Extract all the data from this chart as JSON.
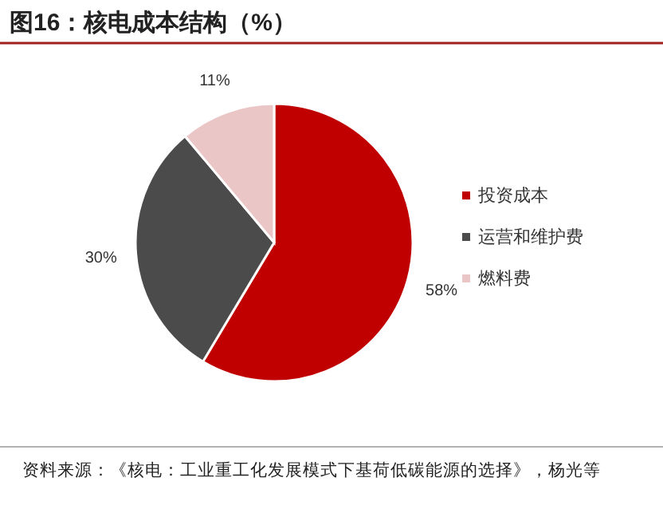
{
  "chart_data": {
    "type": "pie",
    "title": "图16：核电成本结构（%）",
    "categories": [
      "投资成本",
      "运营和维护费",
      "燃料费"
    ],
    "values": [
      58,
      30,
      11
    ],
    "colors": [
      "#c00000",
      "#4b4b4b",
      "#ebc6c6"
    ],
    "value_labels": [
      "58%",
      "30%",
      "11%"
    ],
    "legend": "right",
    "annotations": [
      "资料来源：《核电：工业重工化发展模式下基荷低碳能源的选择》，杨光等"
    ]
  }
}
